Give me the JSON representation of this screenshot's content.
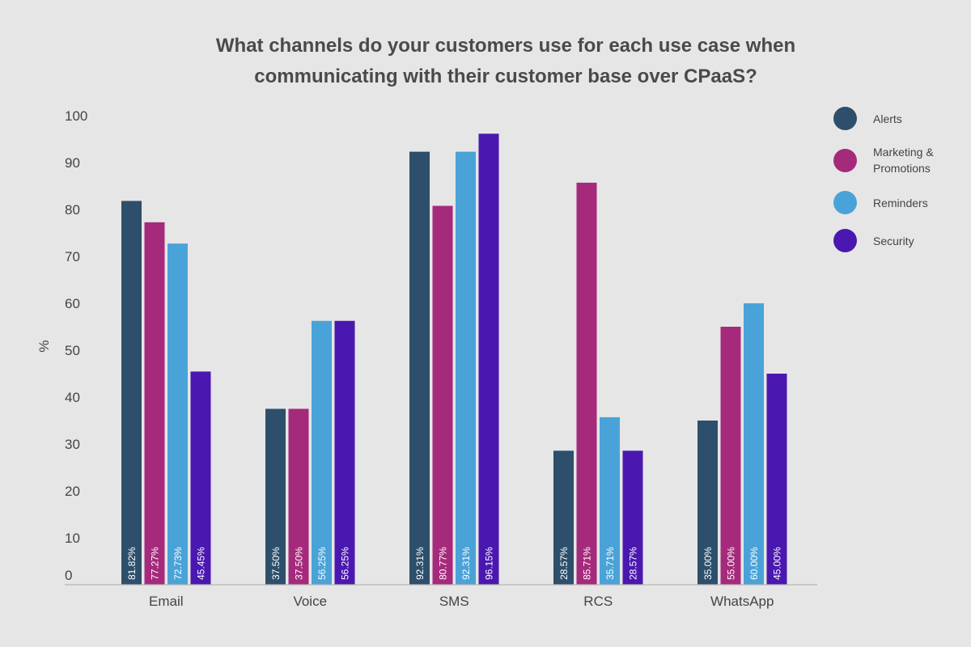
{
  "chart_data": {
    "type": "bar",
    "title": "What channels do your customers use for each use case when communicating with their customer base over CPaaS?",
    "ylabel": "%",
    "xlabel": "",
    "categories": [
      "Email",
      "Voice",
      "SMS",
      "RCS",
      "WhatsApp"
    ],
    "yticks": [
      "0",
      "10",
      "20",
      "30",
      "40",
      "50",
      "60",
      "70",
      "80",
      "90",
      "100"
    ],
    "ylim": [
      0,
      100
    ],
    "grid": false,
    "legend_position": "right",
    "series": [
      {
        "name": "Alerts",
        "color": "#2d4f6c",
        "values": [
          81.82,
          37.5,
          92.31,
          28.57,
          35.0
        ],
        "labels": [
          "81.82%",
          "37.50%",
          "92.31%",
          "28.57%",
          "35.00%"
        ]
      },
      {
        "name": "Marketing &\nPromotions",
        "color": "#a52a7c",
        "values": [
          77.27,
          37.5,
          80.77,
          85.71,
          55.0
        ],
        "labels": [
          "77.27%",
          "37.50%",
          "80.77%",
          "85.71%",
          "55.00%"
        ]
      },
      {
        "name": "Reminders",
        "color": "#4aa3d8",
        "values": [
          72.73,
          56.25,
          92.31,
          35.71,
          60.0
        ],
        "labels": [
          "72.73%",
          "56.25%",
          "92.31%",
          "35.71%",
          "60.00%"
        ]
      },
      {
        "name": "Security",
        "color": "#4a18b0",
        "values": [
          45.45,
          56.25,
          96.15,
          28.57,
          45.0
        ],
        "labels": [
          "45.45%",
          "56.25%",
          "96.15%",
          "28.57%",
          "45.00%"
        ]
      }
    ]
  }
}
